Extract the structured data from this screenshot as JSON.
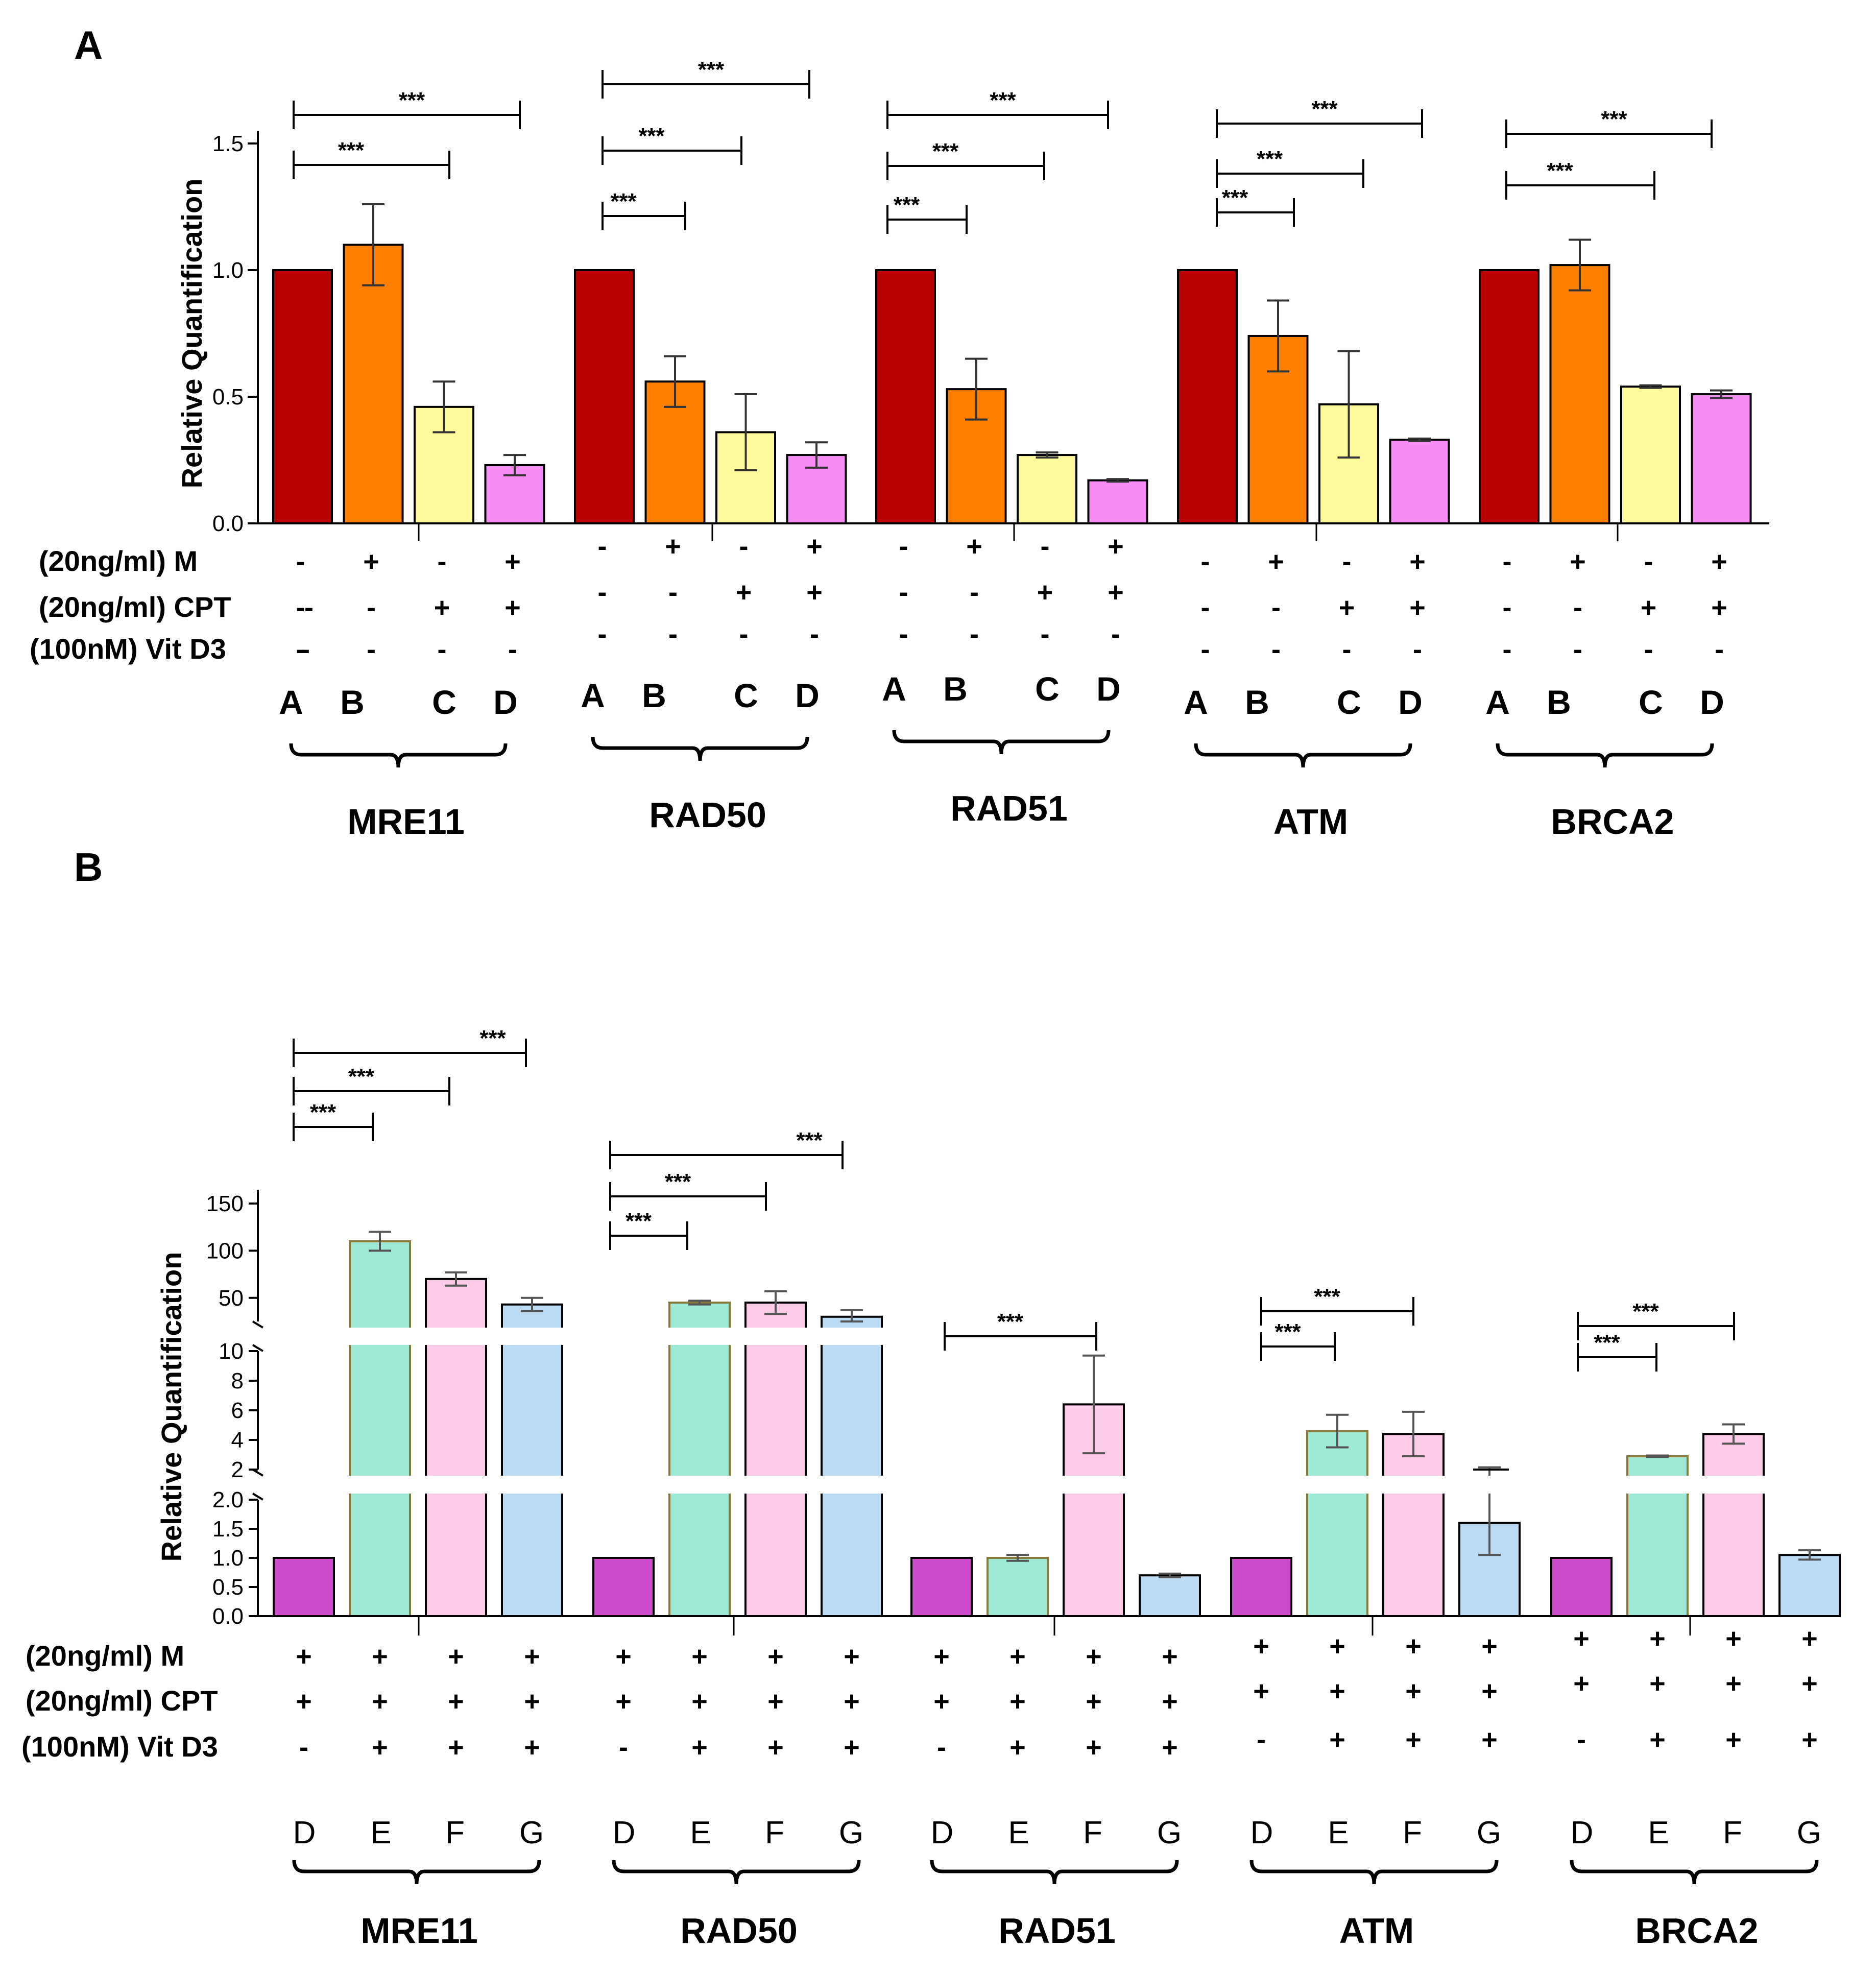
{
  "panelA": {
    "letter": "A",
    "type": "bar",
    "ylabel": "Relative Quantification",
    "ylim": [
      0,
      1.5
    ],
    "yticks": [
      "0.0",
      "0.5",
      "1.0",
      "1.5"
    ],
    "ytick_values": [
      0,
      0.5,
      1.0,
      1.5
    ],
    "conditions": [
      "A",
      "B",
      "C",
      "D"
    ],
    "colors": [
      "#b80000",
      "#ff8000",
      "#fffa9b",
      "#f68cf4"
    ],
    "row_labels": [
      "(20ng/ml) M",
      "(20ng/ml) CPT",
      "(100nM) Vit D3"
    ],
    "signs": {
      "M": [
        "-",
        "+",
        "-",
        "+"
      ],
      "CPT": [
        "-",
        "-",
        "+",
        "+"
      ],
      "VitD3": [
        "-",
        "-",
        "-",
        "-"
      ]
    },
    "groups": [
      {
        "gene": "MRE11",
        "values": [
          1.0,
          1.1,
          0.46,
          0.23
        ],
        "errors": [
          0,
          0.16,
          0.1,
          0.04
        ],
        "sig": [
          "***",
          "***"
        ]
      },
      {
        "gene": "RAD50",
        "values": [
          1.0,
          0.56,
          0.36,
          0.27
        ],
        "errors": [
          0,
          0.1,
          0.15,
          0.05
        ],
        "sig": [
          "***",
          "***",
          "***"
        ]
      },
      {
        "gene": "RAD51",
        "values": [
          1.0,
          0.53,
          0.27,
          0.17
        ],
        "errors": [
          0,
          0.12,
          0.01,
          0.005
        ],
        "sig": [
          "***",
          "***",
          "***"
        ]
      },
      {
        "gene": "ATM",
        "values": [
          1.0,
          0.74,
          0.47,
          0.33
        ],
        "errors": [
          0,
          0.14,
          0.21,
          0.005
        ],
        "sig": [
          "***",
          "***",
          "***"
        ]
      },
      {
        "gene": "BRCA2",
        "values": [
          1.0,
          1.02,
          0.54,
          0.51
        ],
        "errors": [
          0,
          0.1,
          0.005,
          0.015
        ],
        "sig": [
          "***",
          "***"
        ]
      }
    ]
  },
  "panelB": {
    "letter": "B",
    "type": "bar",
    "ylabel": "Relative Quantification",
    "broken_axis": true,
    "segments": [
      {
        "range": [
          0,
          2
        ],
        "ticks": [
          "0.0",
          "0.5",
          "1.0",
          "1.5",
          "2.0"
        ],
        "tick_values": [
          0,
          0.5,
          1,
          1.5,
          2
        ]
      },
      {
        "range": [
          2,
          10
        ],
        "ticks": [
          "2",
          "4",
          "6",
          "8",
          "10"
        ],
        "tick_values": [
          2,
          4,
          6,
          8,
          10
        ]
      },
      {
        "range": [
          25,
          150
        ],
        "ticks": [
          "50",
          "100",
          "150"
        ],
        "tick_values": [
          50,
          100,
          150
        ]
      }
    ],
    "conditions": [
      "D",
      "E",
      "F",
      "G"
    ],
    "colors": [
      "#cc4ccc",
      "#9ee8d6",
      "#fccbe8",
      "#bcdcf6"
    ],
    "edge_colors": [
      "#000000",
      "#8a7a3a",
      "#000000",
      "#000000"
    ],
    "row_labels": [
      "(20ng/ml) M",
      "(20ng/ml) CPT",
      "(100nM) Vit D3"
    ],
    "signs": {
      "M": [
        "+",
        "+",
        "+",
        "+"
      ],
      "CPT": [
        "+",
        "+",
        "+",
        "+"
      ],
      "VitD3": [
        "-",
        "+",
        "+",
        "+"
      ]
    },
    "groups": [
      {
        "gene": "MRE11",
        "values": [
          1.0,
          110,
          70,
          43
        ],
        "errors": [
          0,
          10,
          7,
          7
        ],
        "sig": [
          "***",
          "***",
          "***"
        ]
      },
      {
        "gene": "RAD50",
        "values": [
          1.0,
          45,
          45,
          30
        ],
        "errors": [
          0,
          2,
          12,
          7
        ],
        "sig": [
          "***",
          "***",
          "***"
        ]
      },
      {
        "gene": "RAD51",
        "values": [
          1.0,
          1.0,
          6.4,
          0.7
        ],
        "errors": [
          0,
          0.05,
          3.3,
          0.03
        ],
        "sig": [
          "***"
        ]
      },
      {
        "gene": "ATM",
        "values": [
          1.0,
          4.6,
          4.4,
          1.6
        ],
        "errors": [
          0,
          1.1,
          1.5,
          0.55
        ],
        "sig": [
          "***",
          "***"
        ]
      },
      {
        "gene": "BRCA2",
        "values": [
          1.0,
          2.9,
          4.4,
          1.05
        ],
        "errors": [
          0,
          0.05,
          0.65,
          0.08
        ],
        "sig": [
          "***",
          "***"
        ]
      }
    ]
  }
}
